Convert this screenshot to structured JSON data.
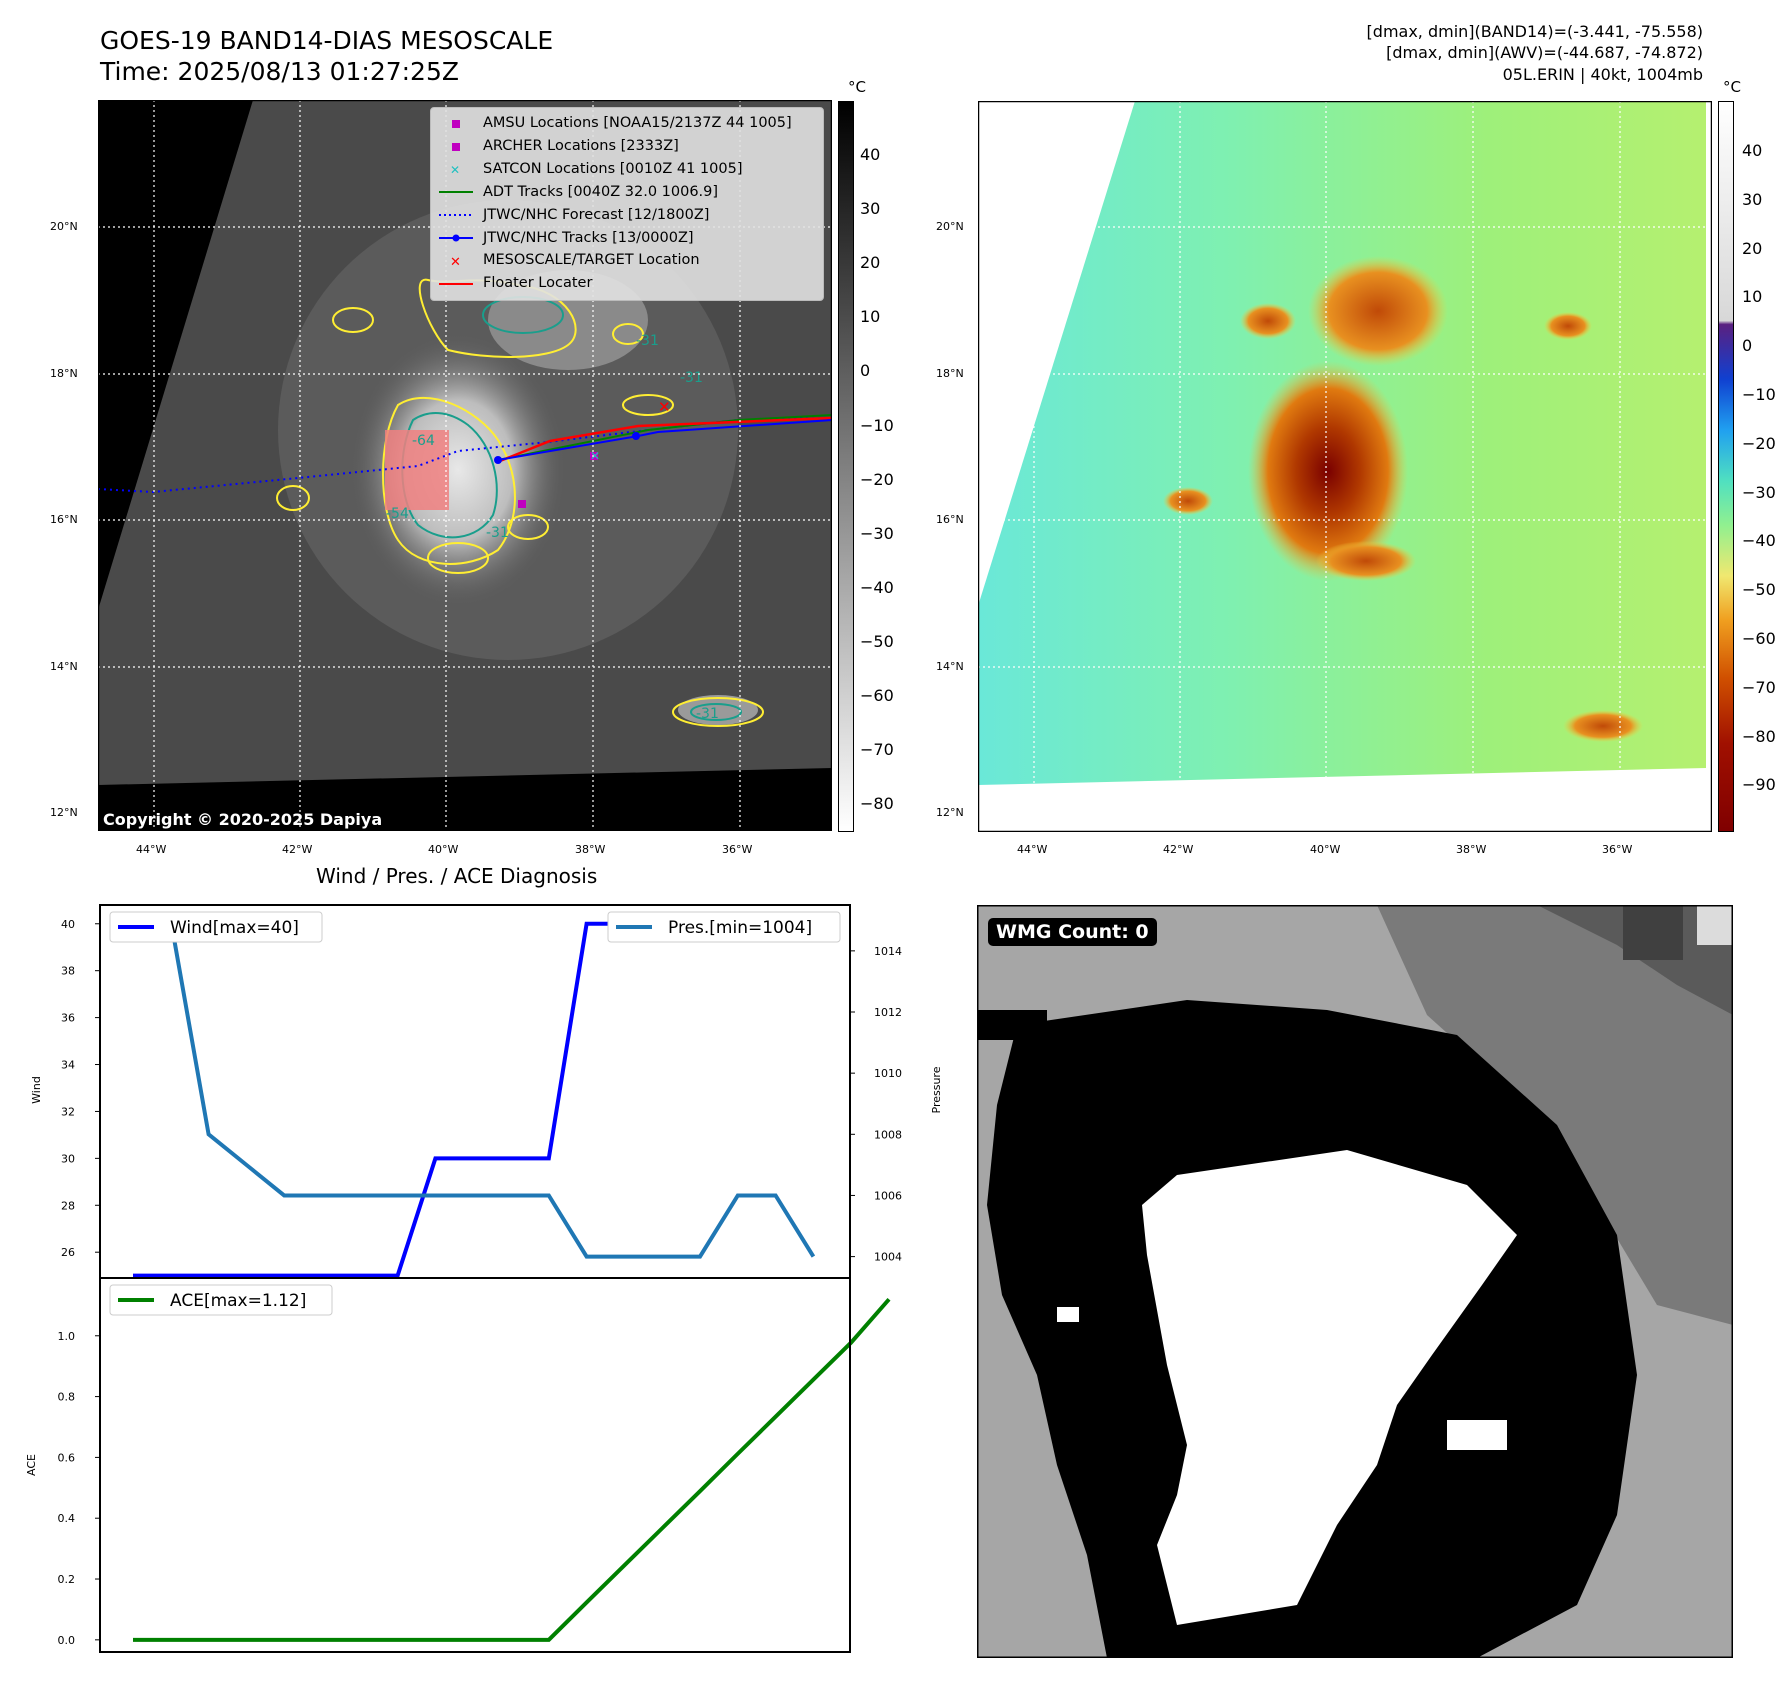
{
  "header": {
    "title": "GOES-19 BAND14-DIAS MESOSCALE",
    "time": "Time: 2025/08/13 01:27:25Z",
    "dmax_band14": "[dmax, dmin](BAND14)=(-3.441, -75.558)",
    "dmax_awv": "[dmax, dmin](AWV)=(-44.687, -74.872)",
    "storm": "05L.ERIN | 40kt, 1004mb"
  },
  "colorbar": {
    "unit": "°C",
    "gray_ticks": [
      "40",
      "30",
      "20",
      "10",
      "0",
      "−10",
      "−20",
      "−30",
      "−40",
      "−50",
      "−60",
      "−70",
      "−80"
    ],
    "color_ticks": [
      "40",
      "30",
      "20",
      "10",
      "0",
      "−10",
      "−20",
      "−30",
      "−40",
      "−50",
      "−60",
      "−70",
      "−80",
      "−90"
    ]
  },
  "map": {
    "lat_labels": [
      "20°N",
      "18°N",
      "16°N",
      "14°N",
      "12°N"
    ],
    "lon_labels": [
      "44°W",
      "42°W",
      "40°W",
      "38°W",
      "36°W"
    ],
    "copyright": "Copyright © 2020-2025 Dapiya",
    "contour_labels": [
      "-64",
      "-54",
      "-31",
      "-31",
      "-31",
      "-31"
    ]
  },
  "legend": [
    {
      "label": "AMSU Locations [NOAA15/2137Z 44 1005]",
      "kind": "square",
      "color": "#c000c0"
    },
    {
      "label": "ARCHER Locations [2333Z]",
      "kind": "square",
      "color": "#c000c0"
    },
    {
      "label": "SATCON Locations [0010Z 41 1005]",
      "kind": "x",
      "color": "#20c0c0"
    },
    {
      "label": "ADT Tracks [0040Z 32.0 1006.9]",
      "kind": "line",
      "color": "#008000"
    },
    {
      "label": "JTWC/NHC Forecast [12/1800Z]",
      "kind": "dotted",
      "color": "#0000ff"
    },
    {
      "label": "JTWC/NHC Tracks [13/0000Z]",
      "kind": "line-dot",
      "color": "#0000ff"
    },
    {
      "label": "MESOSCALE/TARGET Location",
      "kind": "x",
      "color": "#ff0000"
    },
    {
      "label": "Floater Locater",
      "kind": "line",
      "color": "#ff0000"
    }
  ],
  "wmg": {
    "label": "WMG Count: 0"
  },
  "chart_data": [
    {
      "type": "line",
      "title": "Wind / Pres. / ACE Diagnosis",
      "ylabel": "Wind",
      "y2label": "Pressure",
      "ylim": [
        24.9,
        40.8
      ],
      "y2lim": [
        1003.3,
        1015.5
      ],
      "yticks": [
        26,
        28,
        30,
        32,
        34,
        36,
        38,
        40
      ],
      "y2ticks": [
        1004,
        1006,
        1008,
        1010,
        1012,
        1014
      ],
      "series": [
        {
          "name": "Wind[max=40]",
          "color": "#0000ff",
          "axis": "left",
          "values": [
            25,
            25,
            25,
            25,
            25,
            25,
            25,
            25,
            30,
            30,
            30,
            30,
            40,
            40,
            40,
            40,
            40,
            40,
            40
          ]
        },
        {
          "name": "Pres.[min=1004]",
          "color": "#1f77b4",
          "axis": "right",
          "values": [
            1015,
            1015,
            1008,
            1007,
            1006,
            1006,
            1006,
            1006,
            1006,
            1006,
            1006,
            1006,
            1004,
            1004,
            1004,
            1004,
            1006,
            1006,
            1004
          ]
        }
      ]
    },
    {
      "type": "line",
      "ylabel": "ACE",
      "ylim": [
        -0.04,
        1.19
      ],
      "yticks": [
        0.0,
        0.2,
        0.4,
        0.6,
        0.8,
        1.0
      ],
      "series": [
        {
          "name": "ACE[max=1.12]",
          "color": "#008000",
          "values": [
            0,
            0,
            0,
            0,
            0,
            0,
            0,
            0,
            0,
            0,
            0,
            0,
            0.123,
            0.245,
            0.367,
            0.489,
            0.612,
            0.734,
            0.856,
            0.978,
            1.12
          ]
        }
      ]
    }
  ]
}
